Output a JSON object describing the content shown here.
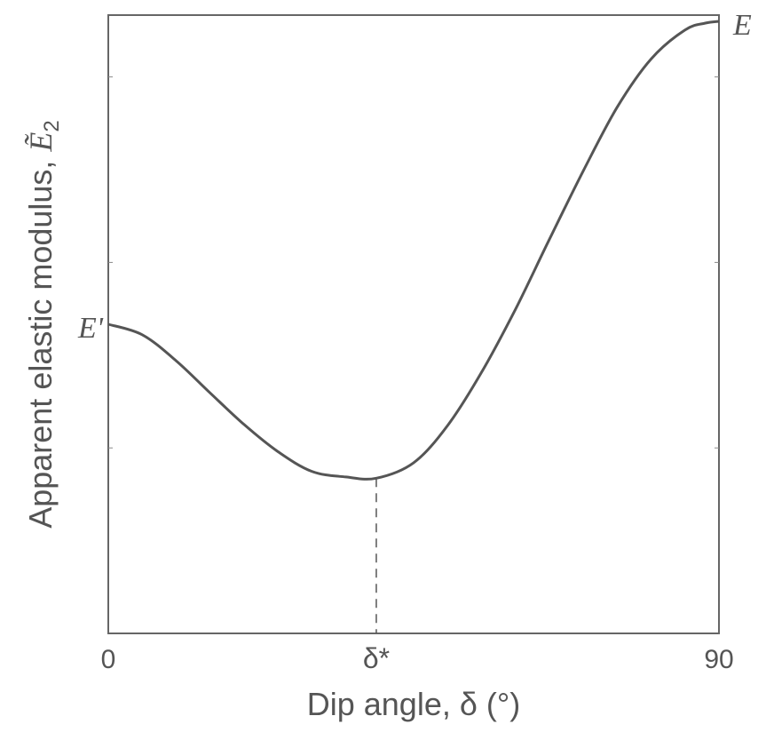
{
  "chart_data": {
    "type": "line",
    "xlabel": "Dip angle, δ (°)",
    "ylabel_prefix": "Apparent elastic modulus, ",
    "ylabel_symbol": "Ẽ",
    "ylabel_subscript": "2",
    "xlim": [
      0,
      90
    ],
    "ylim": [
      0,
      1
    ],
    "x_tick_labels": [
      {
        "x": 0,
        "label": "0"
      },
      {
        "x": 39.5,
        "label": "δ*"
      },
      {
        "x": 90,
        "label": "90"
      }
    ],
    "y_ticks": [
      0.3,
      0.6,
      0.9
    ],
    "grid": false,
    "annotations": [
      {
        "text": "E'",
        "x": 0,
        "y": 0.5,
        "side": "left"
      },
      {
        "text": "E",
        "x": 90,
        "y": 0.99,
        "side": "right"
      }
    ],
    "minimum": {
      "x": 39.5,
      "y": 0.251
    },
    "series": [
      {
        "color": "#555555",
        "x": [
          0,
          5,
          10,
          15,
          20,
          25,
          30,
          35,
          39.5,
          45,
          50,
          55,
          60,
          65,
          70,
          75,
          80,
          85,
          88,
          90
        ],
        "y": [
          0.5,
          0.483,
          0.441,
          0.389,
          0.338,
          0.294,
          0.262,
          0.253,
          0.251,
          0.276,
          0.336,
          0.422,
          0.524,
          0.637,
          0.748,
          0.851,
          0.929,
          0.976,
          0.987,
          0.99
        ]
      }
    ]
  }
}
